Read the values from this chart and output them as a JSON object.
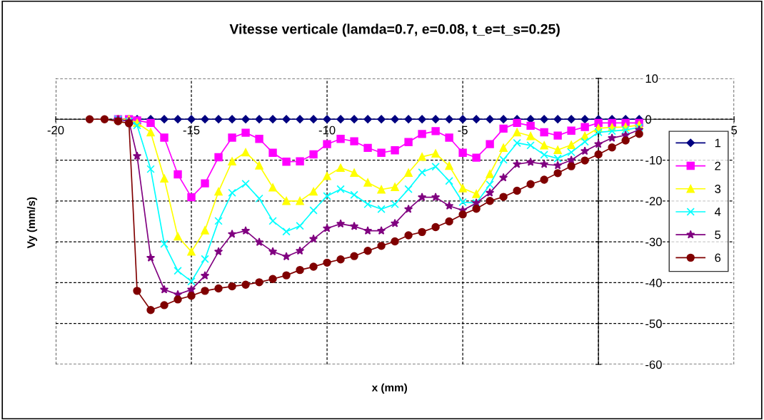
{
  "chart_data": {
    "type": "line",
    "title": "Vitesse verticale (lamda=0.7, e=0.08, t_e=t_s=0.25)",
    "xlabel": "x (mm)",
    "ylabel": "Vy (mm/s)",
    "x": [
      -18.75,
      -18.2,
      -17.7,
      -17.3,
      -17,
      -16.5,
      -16,
      -15.5,
      -15,
      -14.5,
      -14,
      -13.5,
      -13,
      -12.5,
      -12,
      -11.5,
      -11,
      -10.5,
      -10,
      -9.5,
      -9,
      -8.5,
      -8,
      -7.5,
      -7,
      -6.5,
      -6,
      -5.5,
      -5,
      -4.5,
      -4,
      -3.5,
      -3,
      -2.5,
      -2,
      -1.5,
      -1,
      -0.5,
      0,
      0.5,
      1,
      1.5
    ],
    "series": [
      {
        "name": "1",
        "color": "#000080",
        "marker": "diamond",
        "values": [
          null,
          null,
          0,
          0,
          0,
          0,
          0,
          0,
          0,
          0,
          0,
          0,
          0,
          0,
          0,
          0,
          0,
          0,
          0,
          0,
          0,
          0,
          0,
          0,
          0,
          0,
          0,
          0,
          0,
          0,
          0,
          0,
          0,
          0,
          0,
          0,
          0,
          0,
          0,
          0,
          0,
          0
        ]
      },
      {
        "name": "2",
        "color": "#ff00ff",
        "marker": "square",
        "values": [
          null,
          null,
          0,
          0,
          -0.3,
          -0.9,
          -4.5,
          -13.5,
          -19.1,
          -15.7,
          -9.3,
          -4.5,
          -3.3,
          -4.8,
          -8.2,
          -10.4,
          -10.3,
          -8.6,
          -6.1,
          -4.8,
          -5.4,
          -7,
          -8.2,
          -7.6,
          -5.6,
          -3.6,
          -2.9,
          -4.5,
          -8.2,
          -9.4,
          -6.1,
          -2.3,
          -0.9,
          -1.6,
          -3.2,
          -4,
          -2.8,
          -1.9,
          -0.9,
          -0.9,
          -0.9,
          -0.9
        ]
      },
      {
        "name": "3",
        "color": "#ffff00",
        "marker": "triangle",
        "values": [
          null,
          null,
          0,
          0,
          -0.9,
          -3.2,
          -14.5,
          -28.7,
          -32.4,
          -27.2,
          -17.7,
          -10.3,
          -8.1,
          -11.3,
          -16.7,
          -20,
          -20,
          -17.7,
          -13.9,
          -11.9,
          -13.1,
          -15.5,
          -17.2,
          -16.6,
          -13.1,
          -9.2,
          -8.4,
          -11.4,
          -16.9,
          -18.3,
          -13.4,
          -7,
          -3.2,
          -4.1,
          -6.4,
          -7.5,
          -6.3,
          -4.1,
          -2.2,
          -2,
          -1.9,
          -1.4
        ]
      },
      {
        "name": "4",
        "color": "#00ffff",
        "marker": "cross",
        "values": [
          null,
          null,
          0,
          -0.5,
          -1.5,
          -12.2,
          -30.5,
          -37.1,
          -39.7,
          -34.2,
          -24.9,
          -18,
          -15.8,
          -19.4,
          -24.9,
          -27.5,
          -26.1,
          -22.3,
          -18.8,
          -17.1,
          -18.5,
          -20.8,
          -22,
          -20.8,
          -17.1,
          -13,
          -11.6,
          -15.1,
          -20.3,
          -20.5,
          -16,
          -9.9,
          -5.8,
          -6.4,
          -8.7,
          -9.6,
          -8.1,
          -5.5,
          -3.2,
          -2.9,
          -2.6,
          -2
        ]
      },
      {
        "name": "5",
        "color": "#800080",
        "marker": "star",
        "values": [
          null,
          null,
          0,
          -0.5,
          -9,
          -33.9,
          -41.7,
          -42.9,
          -41.7,
          -38.3,
          -32.4,
          -28.1,
          -27.3,
          -30.1,
          -32.4,
          -33.6,
          -32.2,
          -29.3,
          -26.7,
          -25.6,
          -26.2,
          -27.3,
          -27.3,
          -25.5,
          -22,
          -19.1,
          -19.1,
          -21.2,
          -22.3,
          -20.5,
          -18,
          -14.3,
          -11,
          -10.5,
          -11,
          -11.3,
          -10,
          -7.8,
          -6.1,
          -4.6,
          -3.9,
          -2.6
        ]
      },
      {
        "name": "6",
        "color": "#800000",
        "marker": "circle",
        "values": [
          0,
          0,
          -0.5,
          -1,
          -42,
          -46.7,
          -45.5,
          -44.1,
          -43.2,
          -42,
          -41.4,
          -40.9,
          -40.5,
          -39.9,
          -39.1,
          -38.2,
          -36.9,
          -36.1,
          -35.1,
          -34.3,
          -33.5,
          -32.2,
          -31,
          -29.9,
          -28.4,
          -27.6,
          -26.4,
          -25,
          -23.3,
          -21.9,
          -20,
          -19,
          -17.5,
          -15.9,
          -14.8,
          -13.2,
          -11.5,
          -10.1,
          -8.6,
          -6.9,
          -5.2,
          -3.6
        ]
      }
    ],
    "xlim": [
      -20,
      5
    ],
    "xticks": [
      -20,
      -15,
      -10,
      -5,
      0,
      5
    ],
    "ylim": [
      -60,
      10
    ],
    "yticks": [
      -60,
      -50,
      -40,
      -30,
      -20,
      -10,
      0,
      10
    ],
    "grid": true,
    "legend": "right",
    "line_style": "solid"
  }
}
